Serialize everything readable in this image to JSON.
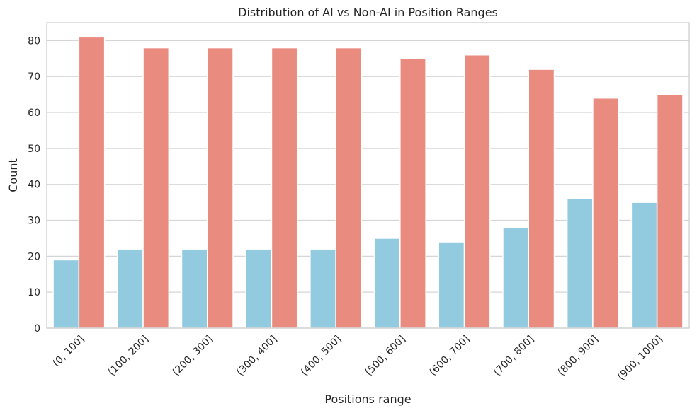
{
  "chart_data": {
    "type": "bar",
    "title": "Distribution of AI vs Non-AI in Position Ranges",
    "xlabel": "Positions range",
    "ylabel": "Count",
    "categories": [
      "(0, 100]",
      "(100, 200]",
      "(200, 300]",
      "(300, 400]",
      "(400, 500]",
      "(500, 600]",
      "(600, 700]",
      "(700, 800]",
      "(800, 900]",
      "(900, 1000]"
    ],
    "series": [
      {
        "color": "#92cae0",
        "values": [
          19,
          22,
          22,
          22,
          22,
          25,
          24,
          28,
          36,
          35
        ]
      },
      {
        "color": "#ea8b80",
        "values": [
          81,
          78,
          78,
          78,
          78,
          75,
          76,
          72,
          64,
          65
        ]
      }
    ],
    "ylim": [
      0,
      85
    ],
    "yticks": [
      0,
      10,
      20,
      30,
      40,
      50,
      60,
      70,
      80
    ],
    "grid": true,
    "legend": false
  }
}
